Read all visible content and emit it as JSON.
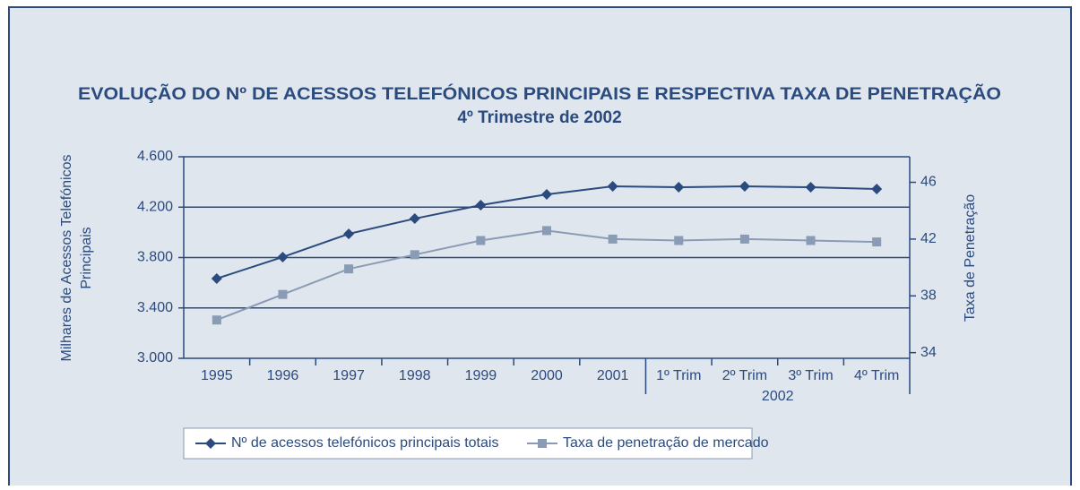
{
  "chart_data": {
    "type": "line",
    "title": "EVOLUÇÃO DO Nº DE ACESSOS TELEFÓNICOS PRINCIPAIS E RESPECTIVA TAXA DE PENETRAÇÃO",
    "subtitle": "4º Trimestre de 2002",
    "ylabel": [
      "Milhares de Acessos Telefónicos",
      "Principais"
    ],
    "y2label": "Taxa de Penetração",
    "categories": [
      "1995",
      "1996",
      "1997",
      "1998",
      "1999",
      "2000",
      "2001",
      "1º Trim",
      "2º Trim",
      "3º Trim",
      "4º Trim"
    ],
    "group_label": "2002",
    "series": [
      {
        "name": "Nº de acessos telefónicos principais totais",
        "color": "#2b4a7e",
        "marker": "diamond",
        "values": [
          3633,
          3804,
          3988,
          4109,
          4216,
          4301,
          4365,
          4358,
          4365,
          4358,
          4344
        ]
      },
      {
        "name": "Taxa de penetração de mercado",
        "color": "#8a9bb5",
        "marker": "square",
        "axis": "y2",
        "values": [
          36.3,
          38.1,
          39.9,
          40.9,
          41.9,
          42.6,
          42.0,
          41.9,
          42.0,
          41.9,
          41.8
        ]
      }
    ],
    "ylim": [
      3000,
      4600
    ],
    "yticks": [
      {
        "value": 3000,
        "label": "3.000"
      },
      {
        "value": 3400,
        "label": "3.400"
      },
      {
        "value": 3800,
        "label": "3.800"
      },
      {
        "value": 4200,
        "label": "4.200"
      },
      {
        "value": 4600,
        "label": "4.600"
      }
    ],
    "y2lim": [
      33.6,
      47.8
    ],
    "y2ticks": [
      34,
      38,
      42,
      46
    ],
    "grid": true
  }
}
